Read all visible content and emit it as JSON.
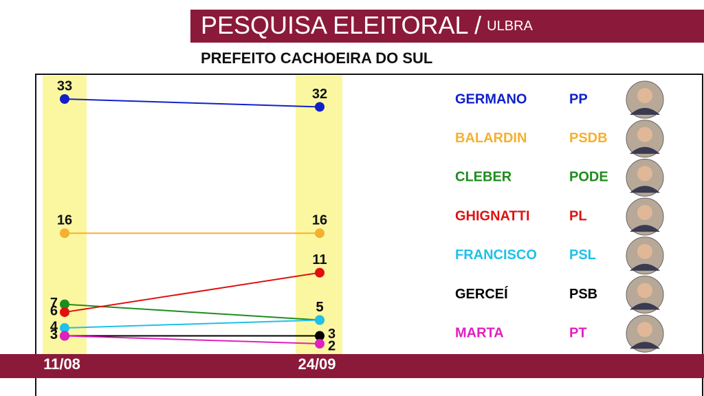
{
  "chart_data": {
    "type": "slope",
    "title": "PESQUISA ELEITORAL /",
    "title_source": "ULBRA",
    "subtitle": "PREFEITO CACHOEIRA DO SUL",
    "categories": [
      "11/08",
      "24/09"
    ],
    "series": [
      {
        "name": "GERMANO",
        "party": "PP",
        "color": "#1020c8",
        "values": [
          33,
          32
        ]
      },
      {
        "name": "BALARDIN",
        "party": "PSDB",
        "color": "#f5b030",
        "values": [
          16,
          16
        ]
      },
      {
        "name": "CLEBER",
        "party": "PODE",
        "color": "#1e8c1e",
        "values": [
          7,
          5
        ]
      },
      {
        "name": "GHIGNATTI",
        "party": "PL",
        "color": "#e01010",
        "values": [
          6,
          11
        ]
      },
      {
        "name": "FRANCISCO",
        "party": "PSL",
        "color": "#20c0e8",
        "values": [
          4,
          5
        ]
      },
      {
        "name": "GERCEÍ",
        "party": "PSB",
        "color": "#000000",
        "values": [
          3,
          3
        ]
      },
      {
        "name": "MARTA",
        "party": "PT",
        "color": "#e020c0",
        "values": [
          3,
          2
        ]
      }
    ]
  }
}
